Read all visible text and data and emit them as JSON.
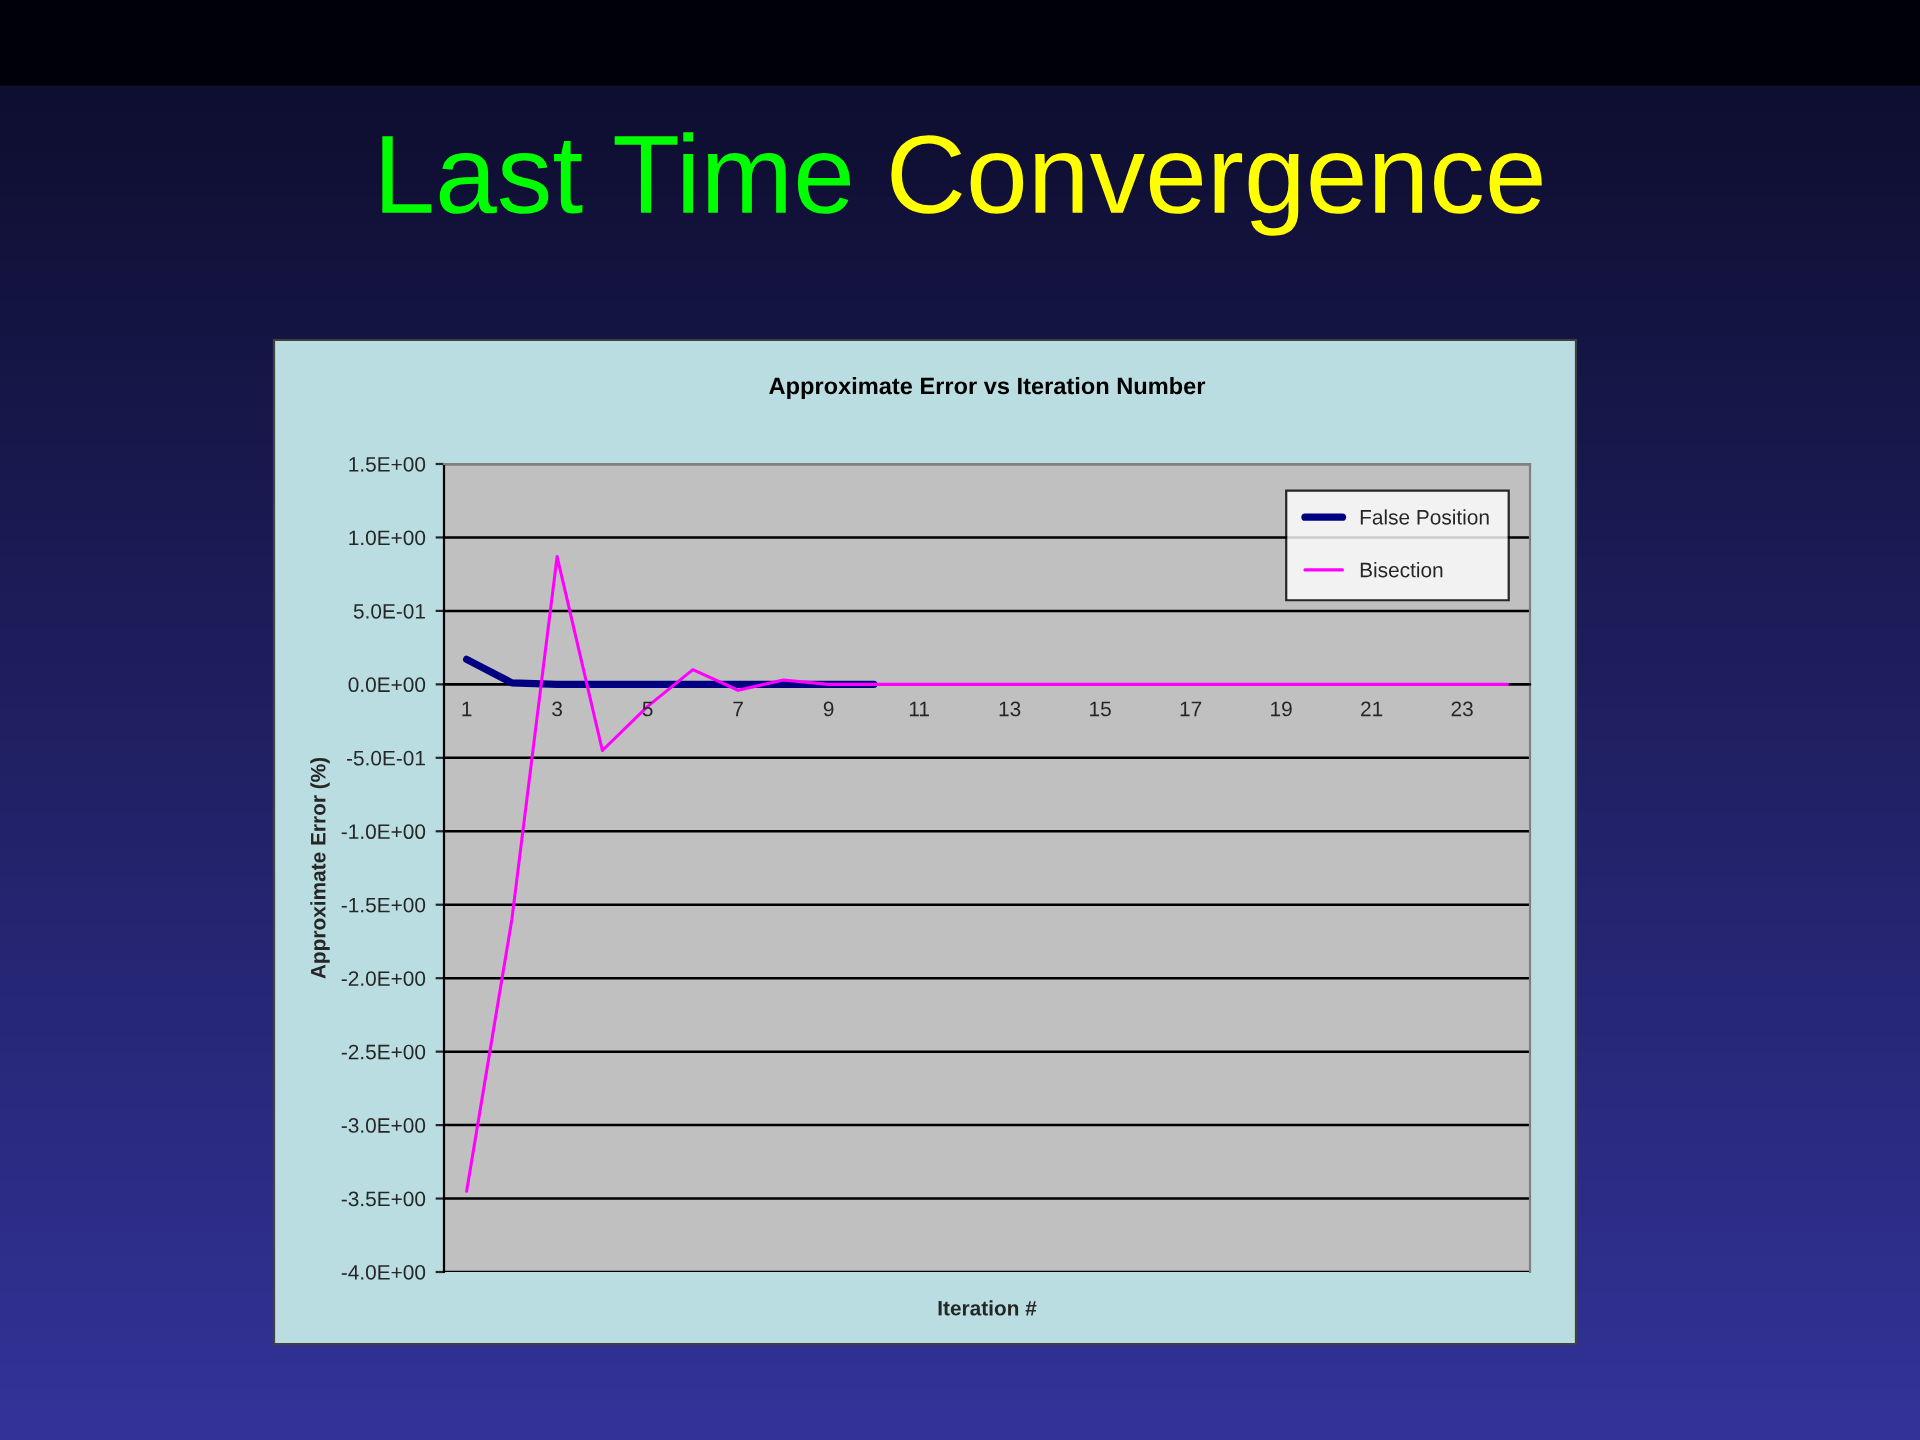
{
  "chart_data": {
    "type": "line",
    "title": "Last Time Convergence",
    "subtitle": "Approximate Error vs Iteration Number",
    "xlabel": "Iteration #",
    "ylabel": "Approximate Error (%)",
    "categories": [
      "1",
      null,
      "3",
      null,
      "5",
      null,
      "7",
      null,
      "9",
      null,
      "11",
      null,
      "13",
      null,
      "15",
      null,
      "17",
      null,
      "19",
      null,
      "21",
      null,
      "23",
      null
    ],
    "series": [
      {
        "name": "False Position",
        "color": "#000080",
        "values": [
          0.17,
          0.01,
          0,
          0,
          0,
          0,
          0,
          0,
          0,
          0,
          null,
          null,
          null,
          null,
          null,
          null,
          null,
          null,
          null,
          null,
          null,
          null,
          null,
          null
        ]
      },
      {
        "name": "Bisection",
        "color": "#ff00ff",
        "values": [
          -3.45,
          -1.6,
          0.87,
          -0.45,
          -0.15,
          0.1,
          -0.04,
          0.03,
          0,
          0,
          0,
          0,
          0,
          0,
          0,
          0,
          0,
          0,
          0,
          0,
          0,
          0,
          0,
          0
        ]
      }
    ],
    "ylim": [
      -4.0,
      1.5
    ],
    "yticks": [
      {
        "value": -4.0,
        "label": "-4.0E+00"
      },
      {
        "value": -3.5,
        "label": "-3.5E+00"
      },
      {
        "value": -3.0,
        "label": "-3.0E+00"
      },
      {
        "value": -2.5,
        "label": "-2.5E+00"
      },
      {
        "value": -2.0,
        "label": "-2.0E+00"
      },
      {
        "value": -1.5,
        "label": "-1.5E+00"
      },
      {
        "value": -1.0,
        "label": "-1.0E+00"
      },
      {
        "value": -0.5,
        "label": "-5.0E-01"
      },
      {
        "value": 0.0,
        "label": "0.0E+00"
      },
      {
        "value": 0.5,
        "label": "5.0E-01"
      },
      {
        "value": 1.0,
        "label": "1.0E+00"
      },
      {
        "value": 1.5,
        "label": "1.5E+00"
      }
    ],
    "grid": "y",
    "legend": "top right",
    "marker": "none",
    "line_style": "solid"
  }
}
